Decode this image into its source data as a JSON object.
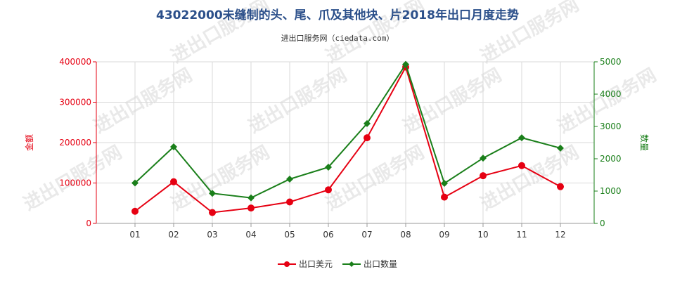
{
  "chart_data": {
    "type": "line",
    "title": "43022000未缝制的头、尾、爪及其他块、片2018年出口月度走势",
    "subtitle": "进出口服务网（ciedata.com）",
    "categories": [
      "01",
      "02",
      "03",
      "04",
      "05",
      "06",
      "07",
      "08",
      "09",
      "10",
      "11",
      "12"
    ],
    "y_left": {
      "label": "金额",
      "ylim": [
        0,
        400000
      ],
      "ticks": [
        0,
        100000,
        200000,
        300000,
        400000
      ],
      "color": "#e60012"
    },
    "y_right": {
      "label": "数量",
      "ylim": [
        0,
        5000
      ],
      "ticks": [
        0,
        1000,
        2000,
        3000,
        4000,
        5000
      ],
      "color": "#1a7f1a"
    },
    "series": [
      {
        "name": "出口美元",
        "axis": "left",
        "color": "#e60012",
        "values": [
          30000,
          103000,
          27000,
          38000,
          53000,
          83000,
          212000,
          387000,
          65000,
          118000,
          143000,
          91000
        ]
      },
      {
        "name": "出口数量",
        "axis": "right",
        "color": "#1a7f1a",
        "values": [
          1250,
          2370,
          930,
          790,
          1370,
          1740,
          3090,
          4920,
          1240,
          2020,
          2650,
          2330
        ]
      }
    ],
    "grid": true,
    "legend_position": "bottom-center"
  },
  "watermark": "进出口服务网"
}
